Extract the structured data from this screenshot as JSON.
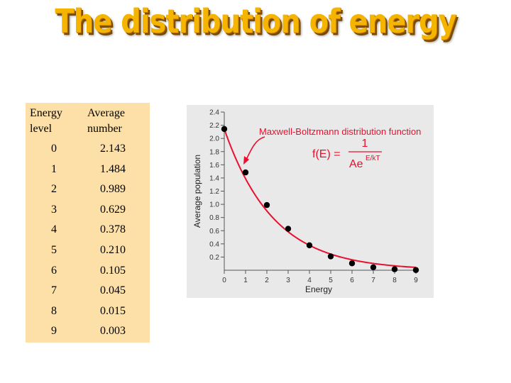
{
  "title": "The distribution of energy",
  "table": {
    "headers": [
      "Energy level",
      "Average number"
    ],
    "header_lines": [
      [
        "Energy",
        "level"
      ],
      [
        "Average",
        "number"
      ]
    ],
    "rows": [
      [
        "0",
        "2.143"
      ],
      [
        "1",
        "1.484"
      ],
      [
        "2",
        "0.989"
      ],
      [
        "3",
        "0.629"
      ],
      [
        "4",
        "0.378"
      ],
      [
        "5",
        "0.210"
      ],
      [
        "6",
        "0.105"
      ],
      [
        "7",
        "0.045"
      ],
      [
        "8",
        "0.015"
      ],
      [
        "9",
        "0.003"
      ]
    ]
  },
  "chart_data": {
    "type": "scatter",
    "xlabel": "Energy",
    "ylabel": "Average population",
    "xlim": [
      0,
      9
    ],
    "ylim": [
      0,
      2.4
    ],
    "xticks": [
      "0",
      "1",
      "2",
      "3",
      "4",
      "5",
      "6",
      "7",
      "8",
      "9"
    ],
    "yticks": [
      "0.2",
      "0.4",
      "0.6",
      "0.8",
      "1.0",
      "1.2",
      "1.4",
      "1.6",
      "1.8",
      "2.0",
      "2.2",
      "2.4"
    ],
    "grid": false,
    "points": {
      "x": [
        0,
        1,
        2,
        3,
        4,
        5,
        6,
        7,
        8,
        9
      ],
      "y": [
        2.143,
        1.484,
        0.989,
        0.629,
        0.378,
        0.21,
        0.105,
        0.045,
        0.015,
        0.003
      ]
    },
    "curve": {
      "name": "Maxwell-Boltzmann distribution function",
      "formula_lhs": "f(E) =",
      "formula_numerator": "1",
      "formula_denominator": "Ae",
      "formula_exponent": "E/kT"
    },
    "point_color": "#000000",
    "curve_color": "#e8102e"
  }
}
